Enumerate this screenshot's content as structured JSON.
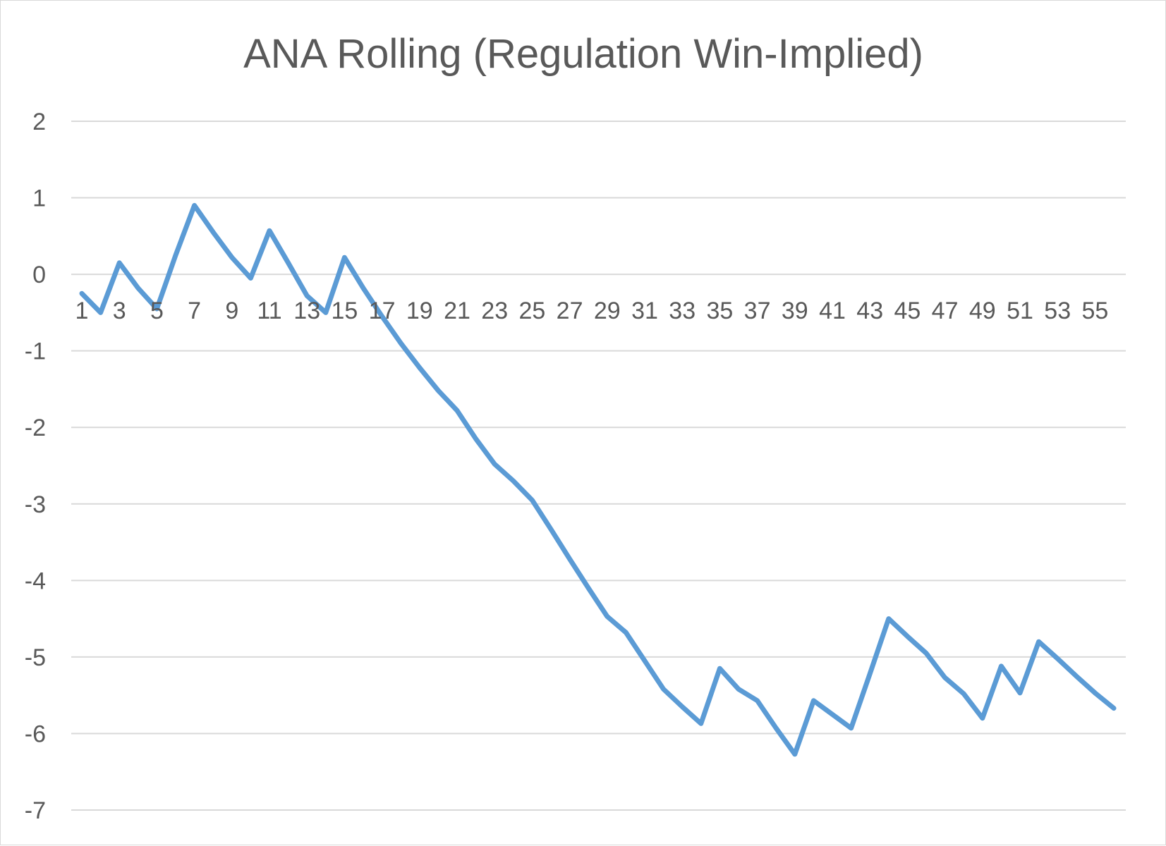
{
  "chart_data": {
    "type": "line",
    "title": "ANA Rolling (Regulation Win-Implied)",
    "xlabel": "",
    "ylabel": "",
    "ylim": [
      -7,
      2
    ],
    "y_ticks": [
      2,
      1,
      0,
      -1,
      -2,
      -3,
      -4,
      -5,
      -6,
      -7
    ],
    "x_tick_labels": [
      "1",
      "3",
      "5",
      "7",
      "9",
      "11",
      "13",
      "15",
      "17",
      "19",
      "21",
      "23",
      "25",
      "27",
      "29",
      "31",
      "33",
      "35",
      "37",
      "39",
      "41",
      "43",
      "45",
      "47",
      "49",
      "51",
      "53",
      "55"
    ],
    "x_tick_position": "at y = 0",
    "grid": true,
    "legend": "none",
    "line_color": "#5b9bd5",
    "grid_color": "#d9d9d9",
    "text_color": "#595959",
    "x": [
      1,
      2,
      3,
      4,
      5,
      6,
      7,
      8,
      9,
      10,
      11,
      12,
      13,
      14,
      15,
      16,
      17,
      18,
      19,
      20,
      21,
      22,
      23,
      24,
      25,
      26,
      27,
      28,
      29,
      30,
      31,
      32,
      33,
      34,
      35,
      36,
      37,
      38,
      39,
      40,
      41,
      42,
      43,
      44,
      45,
      46,
      47,
      48,
      49,
      50,
      51,
      52,
      53,
      54,
      55,
      56
    ],
    "series": [
      {
        "values": [
          -0.25,
          -0.5,
          0.15,
          -0.18,
          -0.45,
          0.25,
          0.9,
          0.55,
          0.22,
          -0.05,
          0.57,
          0.15,
          -0.28,
          -0.5,
          0.22,
          -0.18,
          -0.55,
          -0.9,
          -1.22,
          -1.52,
          -1.78,
          -2.15,
          -2.48,
          -2.7,
          -2.95,
          -3.33,
          -3.72,
          -4.1,
          -4.47,
          -4.68,
          -5.05,
          -5.42,
          -5.65,
          -5.87,
          -5.15,
          -5.42,
          -5.57,
          -5.93,
          -6.27,
          -5.57,
          -5.75,
          -5.93,
          -5.22,
          -4.5,
          -4.73,
          -4.95,
          -5.27,
          -5.48,
          -5.8,
          -5.12,
          -5.47,
          -4.8,
          -5.02,
          -5.25,
          -5.47,
          -5.67
        ]
      }
    ]
  }
}
